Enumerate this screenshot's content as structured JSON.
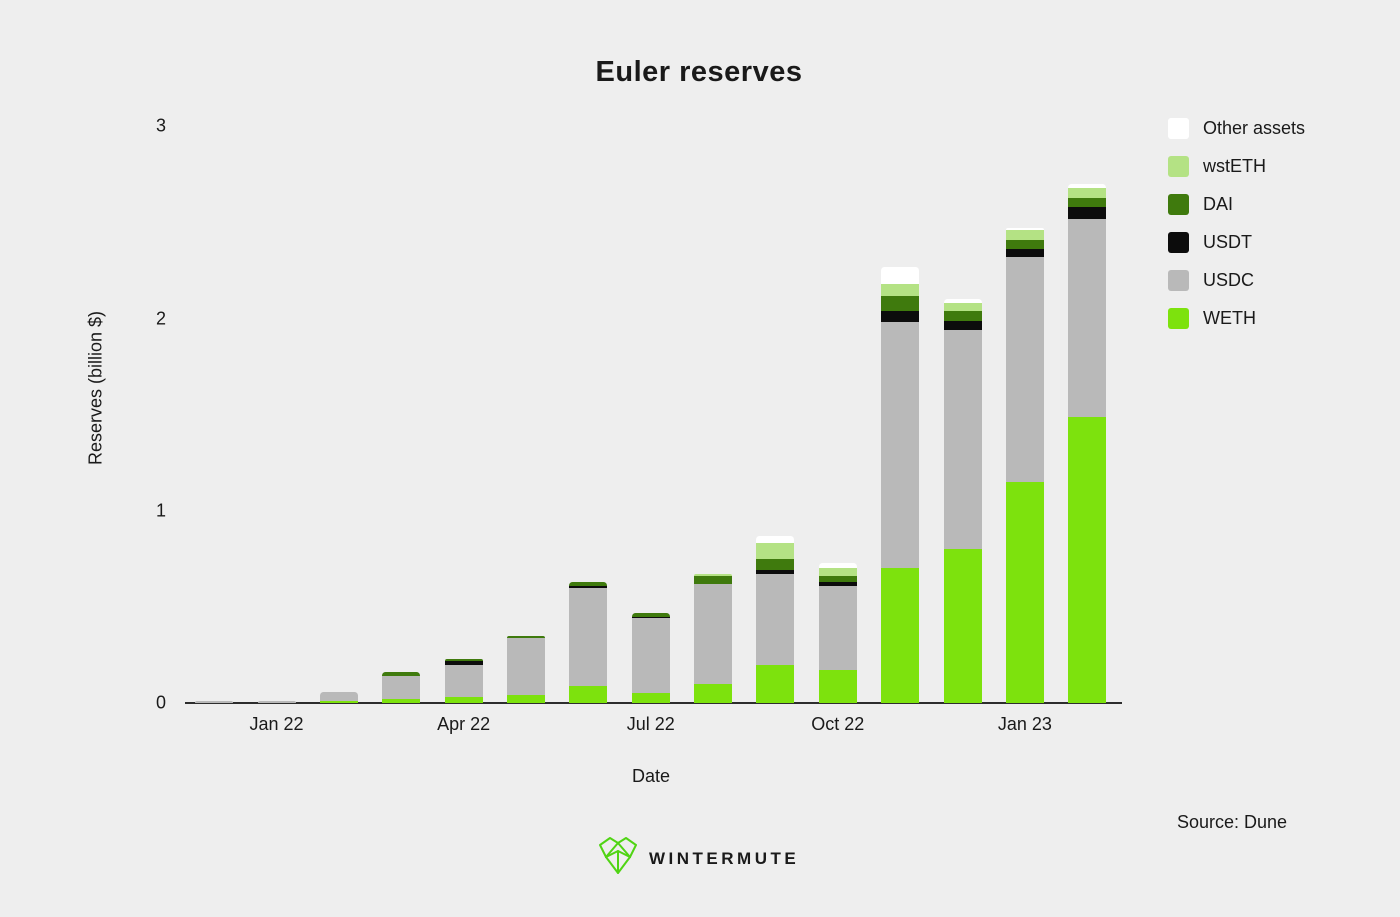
{
  "page": {
    "background": "#eeeeee",
    "text_color": "#1a1a1a",
    "axis_color": "#2d2d2d"
  },
  "footer": {
    "source": "Source: Dune",
    "brand": "WINTERMUTE",
    "logo_color": "#50d414"
  },
  "chart_data": {
    "type": "bar",
    "stacked": true,
    "grid": false,
    "title": "Euler reserves",
    "xlabel": "Date",
    "ylabel": "Reserves (billion $)",
    "ylim": [
      0,
      3
    ],
    "yticks": [
      0,
      1,
      2,
      3
    ],
    "legend_position": "right-top",
    "categories": [
      "Dec 21",
      "Jan 22",
      "Feb 22",
      "Mar 22",
      "Apr 22",
      "May 22",
      "Jun 22",
      "Jul 22",
      "Aug 22",
      "Sep 22",
      "Oct 22",
      "Nov 22",
      "Dec 22",
      "Jan 23",
      "Feb 23"
    ],
    "xticks": [
      {
        "label": "Jan 22",
        "index": 1
      },
      {
        "label": "Apr 22",
        "index": 4
      },
      {
        "label": "Jul 22",
        "index": 7
      },
      {
        "label": "Oct 22",
        "index": 10
      },
      {
        "label": "Jan 23",
        "index": 13
      }
    ],
    "series": [
      {
        "name": "WETH",
        "color": "#7de20d",
        "values": [
          0,
          0,
          0.01,
          0.02,
          0.03,
          0.04,
          0.09,
          0.05,
          0.1,
          0.2,
          0.17,
          0.7,
          0.8,
          1.15,
          1.49
        ]
      },
      {
        "name": "USDC",
        "color": "#b9b9b9",
        "values": [
          0.01,
          0.01,
          0.045,
          0.12,
          0.17,
          0.3,
          0.51,
          0.39,
          0.52,
          0.47,
          0.44,
          1.28,
          1.14,
          1.17,
          1.03
        ]
      },
      {
        "name": "USDT",
        "color": "#0c0c0c",
        "values": [
          0,
          0,
          0,
          0,
          0.02,
          0,
          0.01,
          0.01,
          0,
          0.02,
          0.02,
          0.06,
          0.05,
          0.04,
          0.06
        ]
      },
      {
        "name": "DAI",
        "color": "#3f7a0d",
        "values": [
          0,
          0,
          0,
          0.02,
          0.01,
          0.01,
          0.02,
          0.02,
          0.04,
          0.06,
          0.03,
          0.08,
          0.05,
          0.05,
          0.05
        ]
      },
      {
        "name": "wstETH",
        "color": "#b4e284",
        "values": [
          0,
          0,
          0,
          0,
          0,
          0,
          0,
          0,
          0.01,
          0.08,
          0.04,
          0.06,
          0.04,
          0.05,
          0.05
        ]
      },
      {
        "name": "Other assets",
        "color": "#ffffff",
        "values": [
          0,
          0,
          0,
          0,
          0,
          0,
          0,
          0,
          0,
          0.04,
          0.03,
          0.09,
          0.02,
          0.01,
          0.02
        ]
      }
    ],
    "legend": [
      {
        "label": "Other assets",
        "color": "#ffffff"
      },
      {
        "label": "wstETH",
        "color": "#b4e284"
      },
      {
        "label": "DAI",
        "color": "#3f7a0d"
      },
      {
        "label": "USDT",
        "color": "#0c0c0c"
      },
      {
        "label": "USDC",
        "color": "#b9b9b9"
      },
      {
        "label": "WETH",
        "color": "#7de20d"
      }
    ]
  }
}
